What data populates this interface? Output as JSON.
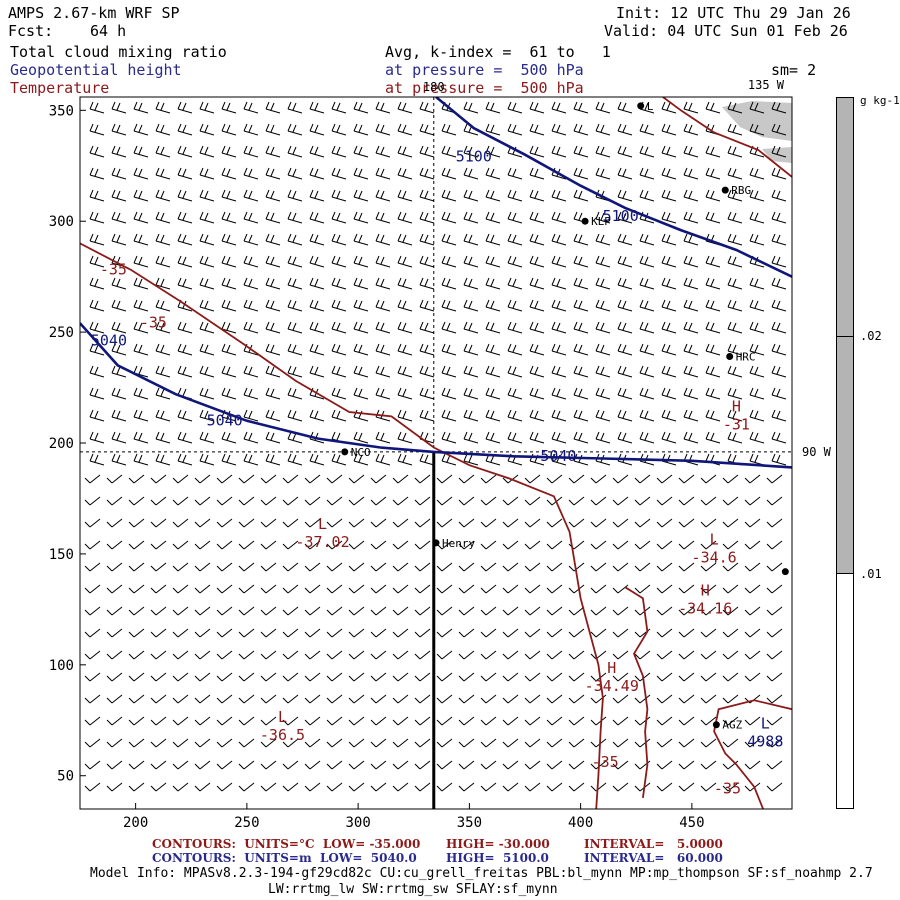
{
  "header": {
    "model": "AMPS 2.67-km WRF SP",
    "fcst_label": "Fcst:",
    "fcst_value": "64 h",
    "init": "Init: 12 UTC Thu 29 Jan 26",
    "valid": "Valid: 04 UTC Sun 01 Feb 26",
    "field1": "Total cloud mixing ratio",
    "field2": "Geopotential height",
    "field3": "Temperature",
    "avg": "Avg, k-index =  61 to   1",
    "press1": "at pressure =  500 hPa",
    "press2": "at pressure =  500 hPa",
    "sm": "sm= 2"
  },
  "colorbar": {
    "unit": "g kg-1",
    "ticks": [
      ".02",
      ".01"
    ],
    "shade_color": "#b4b4b4"
  },
  "footer": {
    "row1_label": "CONTOURS:  UNITS=°C  LOW= -35.000",
    "row1_high": "HIGH= -30.000",
    "row1_interval": "INTERVAL=   5.0000",
    "row2_label": "CONTOURS:  UNITS=m  LOW=  5040.0",
    "row2_high": "HIGH=  5100.0",
    "row2_interval": "INTERVAL=   60.000",
    "info1": "Model Info: MPASv8.2.3-194-gf29cd82c CU:cu_grell_freitas PBL:bl_mynn MP:mp_thompson SF:sf_noahmp 2.7",
    "info2": "LW:rrtmg_lw SW:rrtmg_sw SFLAY:sf_mynn"
  },
  "chart_data": {
    "type": "contour",
    "xlim": [
      175,
      495
    ],
    "ylim": [
      35,
      356
    ],
    "xticks": [
      200,
      250,
      300,
      350,
      400,
      450
    ],
    "yticks": [
      50,
      100,
      150,
      200,
      250,
      300,
      350
    ],
    "meridian_labels": [
      {
        "text": "180",
        "lon_at": "top"
      },
      {
        "text": "135 W",
        "lon_at": "top-right"
      },
      {
        "text": "90 W",
        "lon_at": "right"
      }
    ],
    "height_contours": [
      {
        "label": "5100",
        "points": [
          [
            335,
            356
          ],
          [
            352,
            342
          ],
          [
            375,
            330
          ],
          [
            400,
            316
          ],
          [
            420,
            306
          ],
          [
            445,
            296
          ],
          [
            470,
            287
          ],
          [
            495,
            275
          ]
        ],
        "labels_at": [
          [
            352,
            327
          ],
          [
            418,
            300
          ]
        ]
      },
      {
        "label": "5040",
        "points": [
          [
            175,
            254
          ],
          [
            192,
            235
          ],
          [
            218,
            222
          ],
          [
            250,
            210
          ],
          [
            282,
            202
          ],
          [
            310,
            198
          ],
          [
            334,
            196
          ],
          [
            370,
            194
          ],
          [
            410,
            193
          ],
          [
            450,
            192
          ],
          [
            495,
            189
          ]
        ],
        "labels_at": [
          [
            188,
            244
          ],
          [
            240,
            208
          ],
          [
            390,
            192
          ]
        ]
      }
    ],
    "temperature_contours": [
      {
        "label": "-35",
        "labels_at": [
          [
            190,
            276
          ],
          [
            208,
            252
          ]
        ],
        "points": [
          [
            175,
            290
          ],
          [
            198,
            278
          ],
          [
            220,
            264
          ],
          [
            248,
            245
          ],
          [
            272,
            228
          ],
          [
            296,
            214
          ],
          [
            315,
            212
          ],
          [
            334,
            198
          ],
          [
            350,
            190
          ],
          [
            368,
            184
          ],
          [
            388,
            176
          ],
          [
            395,
            160
          ],
          [
            397,
            148
          ],
          [
            400,
            130
          ],
          [
            404,
            115
          ],
          [
            408,
            100
          ],
          [
            410,
            85
          ],
          [
            409,
            70
          ],
          [
            408,
            50
          ],
          [
            407,
            35
          ]
        ]
      },
      {
        "label": "-35",
        "labels_at": [
          [
            411,
            54
          ]
        ],
        "points": [
          [
            420,
            135
          ],
          [
            428,
            130
          ],
          [
            430,
            115
          ],
          [
            424,
            105
          ],
          [
            428,
            95
          ],
          [
            430,
            80
          ],
          [
            429,
            70
          ],
          [
            430,
            55
          ],
          [
            428,
            40
          ]
        ]
      },
      {
        "label": "-35",
        "labels_at": [
          [
            466,
            42
          ]
        ],
        "points": [
          [
            495,
            80
          ],
          [
            478,
            84
          ],
          [
            462,
            80
          ],
          [
            460,
            70
          ],
          [
            465,
            60
          ],
          [
            470,
            55
          ],
          [
            478,
            45
          ],
          [
            482,
            35
          ]
        ]
      },
      {
        "label": "",
        "points": [
          [
            437,
            356
          ],
          [
            445,
            350
          ],
          [
            460,
            340
          ],
          [
            480,
            332
          ],
          [
            495,
            320
          ]
        ]
      }
    ],
    "extrema": [
      {
        "symbol": "L",
        "value": "-37.02",
        "color": "red",
        "x": 284,
        "y": 155
      },
      {
        "symbol": "L",
        "value": "-36.5",
        "color": "red",
        "x": 266,
        "y": 68
      },
      {
        "symbol": "L",
        "value": "-34.6",
        "color": "red",
        "x": 460,
        "y": 148
      },
      {
        "symbol": "H",
        "value": "-34.16",
        "color": "red",
        "x": 456,
        "y": 125
      },
      {
        "symbol": "H",
        "value": "-34.49",
        "color": "red",
        "x": 414,
        "y": 90
      },
      {
        "symbol": "H",
        "value": "-31",
        "color": "red",
        "x": 470,
        "y": 208
      },
      {
        "symbol": "L",
        "value": "4988",
        "color": "blue",
        "x": 483,
        "y": 65
      }
    ],
    "stations": [
      {
        "name": "KLP",
        "x": 402,
        "y": 300
      },
      {
        "name": "RBG",
        "x": 465,
        "y": 314
      },
      {
        "name": "HRC",
        "x": 467,
        "y": 239
      },
      {
        "name": "NCO",
        "x": 294,
        "y": 196
      },
      {
        "name": "Henry",
        "x": 335,
        "y": 155
      },
      {
        "name": "AGZ",
        "x": 461,
        "y": 73
      },
      {
        "name": "L",
        "x": 427,
        "y": 352
      },
      {
        "name": "",
        "x": 492,
        "y": 142
      }
    ],
    "cross_section": {
      "x": 334,
      "y_top": 196,
      "y_bottom": 35
    }
  }
}
